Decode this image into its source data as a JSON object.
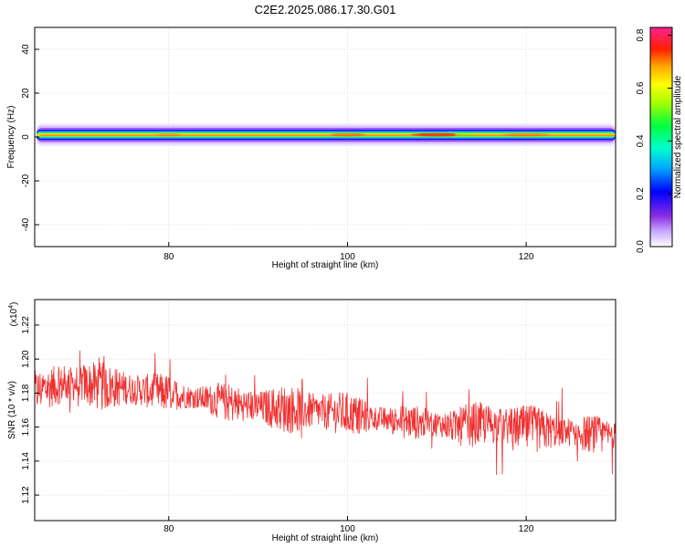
{
  "title": "C2E2.2025.086.17.30.G01",
  "colors": {
    "snr_line": "#f03030",
    "grid": "#c8c8c8"
  },
  "chart_data": [
    {
      "type": "heatmap",
      "title": "C2E2.2025.086.17.30.G01",
      "xlabel": "Height of straight line (km)",
      "ylabel": "Frequency (Hz)",
      "xlim": [
        65,
        130
      ],
      "ylim": [
        -50,
        50
      ],
      "x_ticks": [
        "80",
        "100",
        "120"
      ],
      "x_tick_values": [
        80,
        100,
        120
      ],
      "y_ticks": [
        "40",
        "20",
        "0",
        "-20",
        "-40"
      ],
      "y_tick_values": [
        40,
        20,
        0,
        -20,
        -40
      ],
      "grid": true,
      "band": {
        "center_hz": 1,
        "peak_height_km": 110,
        "secondary_peak_km": 113
      },
      "colorbar": {
        "label": "Normalized spectral amplitude",
        "range": [
          0,
          0.83
        ],
        "ticks": [
          "0.8",
          "0.6",
          "0.4",
          "0.2",
          "0.0"
        ],
        "tick_values": [
          0.8,
          0.6,
          0.4,
          0.2,
          0.0
        ],
        "colormap": "rainbow (white-violet-blue-cyan-green-yellow-orange-red-magenta)"
      }
    },
    {
      "type": "line",
      "xlabel": "Height of straight line (km)",
      "ylabel": "SNR (10 * v/v)",
      "scale_label": "(x10",
      "scale_exponent": "4",
      "scale_suffix": ")",
      "xlim": [
        65,
        130
      ],
      "ylim": [
        1.105,
        1.235
      ],
      "x_ticks": [
        "80",
        "100",
        "120"
      ],
      "x_tick_values": [
        80,
        100,
        120
      ],
      "y_ticks": [
        "1.22",
        "1.20",
        "1.18",
        "1.16",
        "1.14",
        "1.12"
      ],
      "y_tick_values": [
        1.22,
        1.2,
        1.18,
        1.16,
        1.14,
        1.12
      ],
      "grid": true,
      "series": [
        {
          "x": [
            65,
            67,
            70,
            72,
            75,
            78,
            80,
            82,
            85,
            87,
            90,
            92,
            95,
            97,
            100,
            102,
            105,
            107,
            110,
            112,
            115,
            117,
            120,
            122,
            125,
            127,
            130
          ],
          "values": [
            1.181,
            1.184,
            1.186,
            1.184,
            1.183,
            1.181,
            1.18,
            1.178,
            1.176,
            1.174,
            1.172,
            1.171,
            1.17,
            1.169,
            1.168,
            1.166,
            1.164,
            1.163,
            1.162,
            1.16,
            1.162,
            1.161,
            1.159,
            1.158,
            1.157,
            1.156,
            1.155
          ]
        }
      ]
    }
  ]
}
